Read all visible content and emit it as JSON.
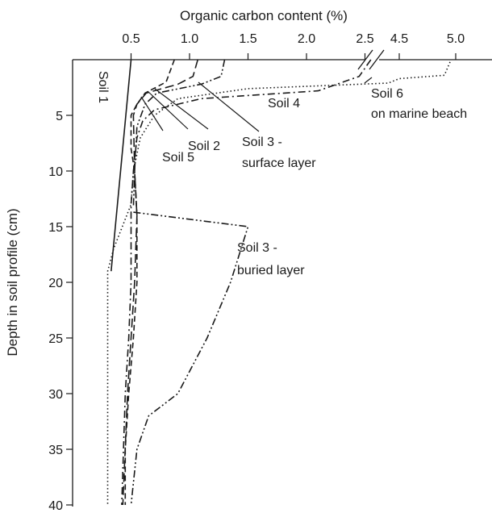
{
  "chart_data": {
    "type": "line",
    "orientation": "depth-profile",
    "xlabel": "Organic carbon content (%)",
    "ylabel": "Depth in soil profile (cm)",
    "x_axis_position": "top",
    "x_ticks_left": [
      "0.5",
      "1.0",
      "1.5",
      "2.0",
      "2.5"
    ],
    "x_ticks_right": [
      "4.5",
      "5.0"
    ],
    "x_axis_break": "between 2.5 and 4.5",
    "y_ticks": [
      "5",
      "10",
      "15",
      "20",
      "25",
      "30",
      "35",
      "40"
    ],
    "ylim": [
      0,
      40
    ],
    "grid": false,
    "legend": "none (inline labels)",
    "series": [
      {
        "label": "Soil 1",
        "style": "solid",
        "points": [
          [
            0.5,
            0
          ],
          [
            0.33,
            19
          ]
        ]
      },
      {
        "label": "Soil 2",
        "style": "dashed",
        "points": [
          [
            0.87,
            0
          ],
          [
            0.8,
            2
          ],
          [
            0.62,
            3
          ],
          [
            0.55,
            4
          ],
          [
            0.5,
            5
          ],
          [
            0.5,
            8
          ],
          [
            0.53,
            10
          ],
          [
            0.55,
            14
          ],
          [
            0.55,
            20
          ],
          [
            0.52,
            25
          ],
          [
            0.48,
            30
          ],
          [
            0.45,
            35
          ],
          [
            0.45,
            40
          ]
        ]
      },
      {
        "label": "Soil 3 - surface layer",
        "style": "dash-dot-dot",
        "points": [
          [
            1.3,
            0
          ],
          [
            1.27,
            1.5
          ],
          [
            1.1,
            2.2
          ],
          [
            0.72,
            3
          ],
          [
            0.62,
            4
          ],
          [
            0.55,
            6
          ],
          [
            0.53,
            10
          ],
          [
            0.52,
            13.3
          ]
        ]
      },
      {
        "label": "Soil 3 - buried layer",
        "style": "dash-dot-dot",
        "points": [
          [
            0.52,
            13.7
          ],
          [
            1.5,
            15
          ],
          [
            1.35,
            20
          ],
          [
            1.15,
            25
          ],
          [
            0.9,
            30
          ],
          [
            0.65,
            32
          ],
          [
            0.55,
            35
          ],
          [
            0.5,
            40
          ]
        ]
      },
      {
        "label": "Soil 4",
        "style": "dash-dot",
        "points": [
          [
            2.55,
            0
          ],
          [
            2.45,
            1.5
          ],
          [
            2.1,
            2.8
          ],
          [
            1.1,
            3.5
          ],
          [
            0.7,
            4.5
          ],
          [
            0.6,
            5.5
          ],
          [
            0.55,
            7
          ],
          [
            0.52,
            10
          ],
          [
            0.5,
            13
          ],
          [
            0.5,
            20
          ],
          [
            0.48,
            25
          ],
          [
            0.45,
            30
          ],
          [
            0.42,
            40
          ]
        ]
      },
      {
        "label": "Soil 5",
        "style": "long-dash",
        "points": [
          [
            1.07,
            0
          ],
          [
            1.03,
            1.5
          ],
          [
            0.9,
            2.2
          ],
          [
            0.63,
            3
          ],
          [
            0.55,
            4
          ],
          [
            0.52,
            5
          ],
          [
            0.53,
            10
          ],
          [
            0.55,
            14
          ],
          [
            0.53,
            20
          ],
          [
            0.5,
            25
          ],
          [
            0.47,
            30
          ],
          [
            0.43,
            40
          ]
        ]
      },
      {
        "label": "Soil 6 on marine beach",
        "style": "dotted",
        "points": [
          [
            4.95,
            0.2
          ],
          [
            4.9,
            1.4
          ],
          [
            4.5,
            1.7
          ],
          [
            2.7,
            2.1
          ],
          [
            1.5,
            2.6
          ],
          [
            0.9,
            3.5
          ],
          [
            0.7,
            5
          ],
          [
            0.58,
            7
          ],
          [
            0.52,
            10
          ],
          [
            0.5,
            13
          ],
          [
            0.35,
            17
          ],
          [
            0.3,
            19
          ],
          [
            0.3,
            40
          ]
        ]
      }
    ],
    "annotations": {
      "soil1": "Soil 1",
      "soil2": "Soil 2",
      "soil3_surface_line1": "Soil 3 -",
      "soil3_surface_line2": "surface layer",
      "soil3_buried_line1": "Soil 3 -",
      "soil3_buried_line2": "buried layer",
      "soil4": "Soil 4",
      "soil5": "Soil 5",
      "soil6_line1": "Soil 6",
      "soil6_line2": "on marine beach"
    }
  }
}
